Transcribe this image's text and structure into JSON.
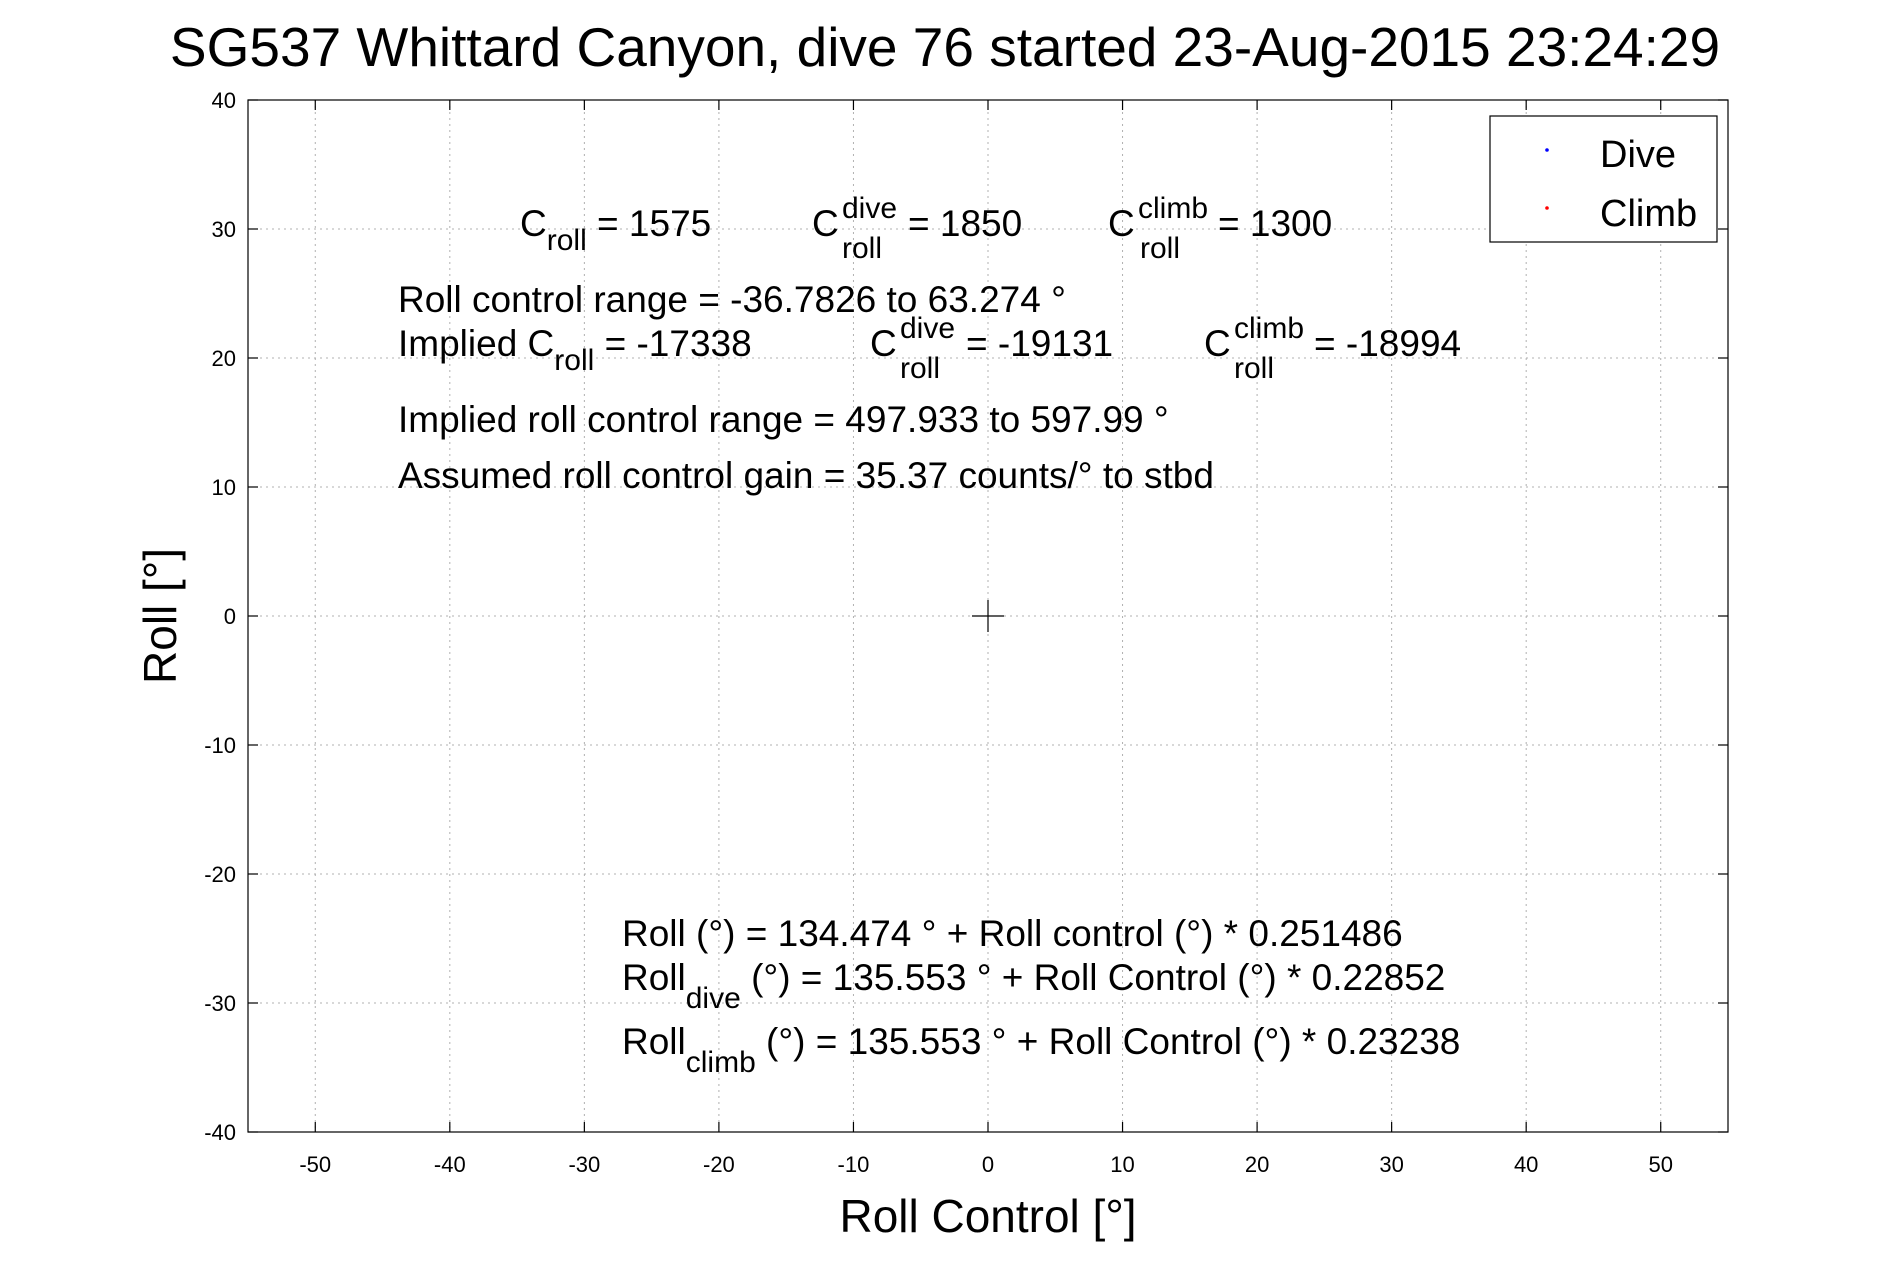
{
  "chart_data": {
    "type": "scatter",
    "title": "SG537 Whittard Canyon, dive 76 started 23-Aug-2015 23:24:29",
    "xlabel": "Roll Control [°]",
    "ylabel": "Roll [°]",
    "xlim": [
      -55,
      55
    ],
    "ylim": [
      -40,
      40
    ],
    "xticks": [
      -50,
      -40,
      -30,
      -20,
      -10,
      0,
      10,
      20,
      30,
      40,
      50
    ],
    "yticks": [
      -40,
      -30,
      -20,
      -10,
      0,
      10,
      20,
      30,
      40
    ],
    "grid": true,
    "legend_position": "top-right",
    "series": [
      {
        "name": "Dive",
        "color": "#0000ff",
        "points": []
      },
      {
        "name": "Climb",
        "color": "#ff0000",
        "points": []
      }
    ],
    "marker": {
      "x": 0,
      "y": 0,
      "symbol": "+"
    }
  },
  "annotations": {
    "c_roll_base": "C",
    "c_roll_sub": "roll",
    "c_roll_value": " = 1575",
    "c_dive_base": "C",
    "c_dive_sup": "dive",
    "c_dive_sub": "roll",
    "c_dive_value": " = 1850",
    "c_climb_base": "C",
    "c_climb_sup": "climb",
    "c_climb_sub": "roll",
    "c_climb_value": " = 1300",
    "roll_control_range": "Roll control range = -36.7826 to 63.274 °",
    "implied_prefix": "Implied C",
    "implied_sub": "roll",
    "implied_value": " = -17338",
    "implied_dive_base": "C",
    "implied_dive_sup": "dive",
    "implied_dive_sub": "roll",
    "implied_dive_value": " = -19131",
    "implied_climb_base": "C",
    "implied_climb_sup": "climb",
    "implied_climb_sub": "roll",
    "implied_climb_value": " = -18994",
    "implied_range": "Implied roll control range = 497.933 to 597.99 °",
    "assumed_gain": "Assumed roll control gain = 35.37 counts/° to stbd",
    "fit_all": "Roll (°) = 134.474 ° + Roll control (°) * 0.251486",
    "fit_dive_base": "Roll",
    "fit_dive_sub": "dive",
    "fit_dive_rest": " (°) = 135.553 ° + Roll Control (°) * 0.22852",
    "fit_climb_base": "Roll",
    "fit_climb_sub": "climb",
    "fit_climb_rest": " (°) = 135.553 ° + Roll Control (°) * 0.23238"
  }
}
